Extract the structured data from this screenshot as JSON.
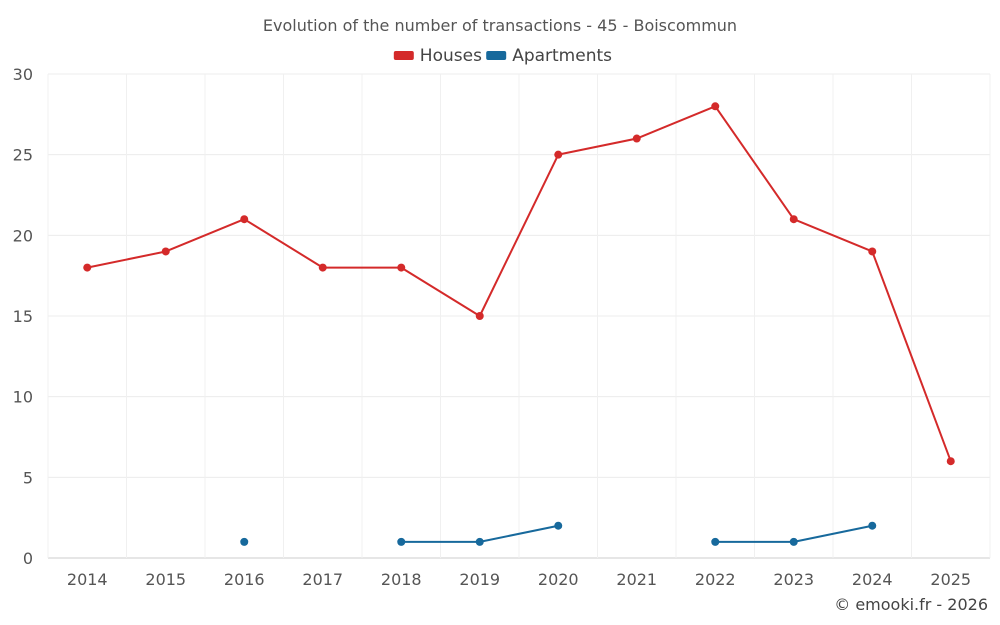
{
  "chart_data": {
    "type": "line",
    "title": "Evolution of the number of transactions - 45 - Boiscommun",
    "categories": [
      "2014",
      "2015",
      "2016",
      "2017",
      "2018",
      "2019",
      "2020",
      "2021",
      "2022",
      "2023",
      "2024",
      "2025"
    ],
    "series": [
      {
        "name": "Houses",
        "color": "#d42a2a",
        "values": [
          18,
          19,
          21,
          18,
          18,
          15,
          25,
          26,
          28,
          21,
          19,
          6
        ]
      },
      {
        "name": "Apartments",
        "color": "#17699c",
        "values": [
          null,
          null,
          1,
          null,
          1,
          1,
          2,
          null,
          1,
          1,
          2,
          null
        ]
      }
    ],
    "ylim": [
      0,
      30
    ],
    "yticks": [
      0,
      5,
      10,
      15,
      20,
      25,
      30
    ],
    "grid": true,
    "legend": "top-center",
    "xlabel": "",
    "ylabel": ""
  },
  "credit": "© emooki.fr - 2026"
}
